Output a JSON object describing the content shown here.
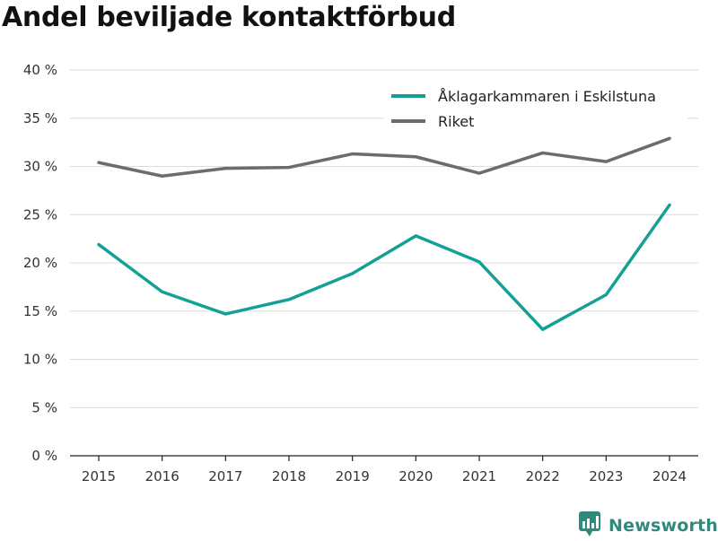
{
  "title": "Andel beviljade kontaktförbud",
  "brand": {
    "name": "Newsworthy",
    "icon": "newsworthy-logo-icon"
  },
  "chart_data": {
    "type": "line",
    "title": "Andel beviljade kontaktförbud",
    "xlabel": "",
    "ylabel": "",
    "categories": [
      "2015",
      "2016",
      "2017",
      "2018",
      "2019",
      "2020",
      "2021",
      "2022",
      "2023",
      "2024"
    ],
    "ylim": [
      0,
      40
    ],
    "yticks": [
      0,
      5,
      10,
      15,
      20,
      25,
      30,
      35,
      40
    ],
    "ytick_labels": [
      "0 %",
      "5 %",
      "10 %",
      "15 %",
      "20 %",
      "25 %",
      "30 %",
      "35 %",
      "40 %"
    ],
    "grid": true,
    "legend_position": "top-right",
    "series": [
      {
        "name": "Åklagarkammaren i Eskilstuna",
        "color": "#14a095",
        "values": [
          21.9,
          17.0,
          14.7,
          16.2,
          18.9,
          22.8,
          20.1,
          13.1,
          16.7,
          26.0
        ]
      },
      {
        "name": "Riket",
        "color": "#6b6b70",
        "values": [
          30.4,
          29.0,
          29.8,
          29.9,
          31.3,
          31.0,
          29.3,
          31.4,
          30.5,
          32.9
        ]
      }
    ]
  }
}
